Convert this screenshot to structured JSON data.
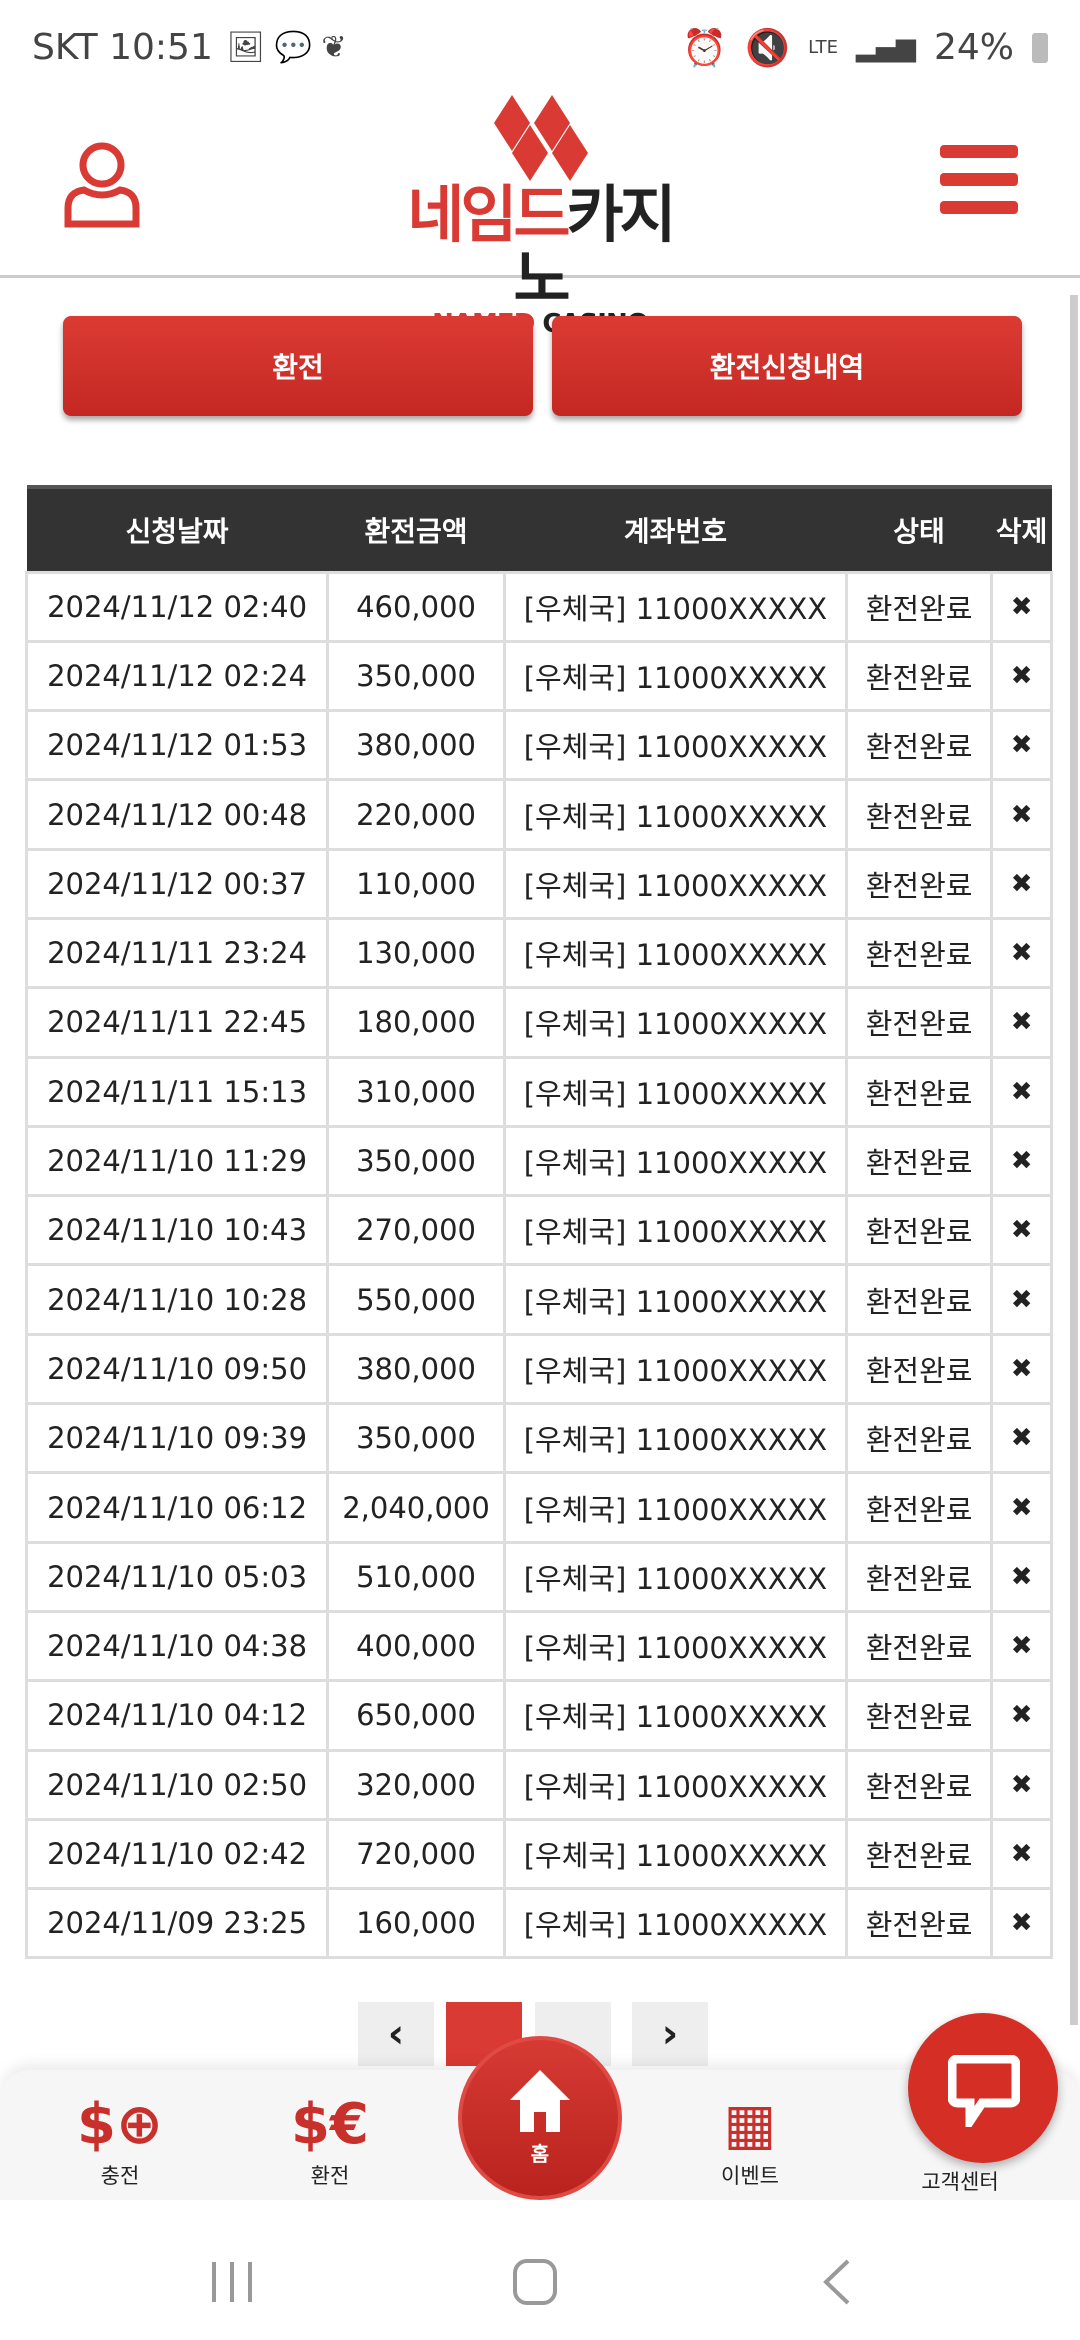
{
  "status_bar": {
    "carrier": "SKT",
    "time": "10:51",
    "network": "LTE",
    "battery": "24%"
  },
  "header": {
    "logo_kr_red": "네임드",
    "logo_kr_black": "카지노",
    "logo_en_red": "NAMED",
    "logo_en_black": "CASINO"
  },
  "buttons": {
    "withdraw": "환전",
    "history": "환전신청내역"
  },
  "table": {
    "headers": [
      "신청날짜",
      "환전금액",
      "계좌번호",
      "상태",
      "삭제"
    ],
    "rows": [
      [
        "2024/11/12 02:40",
        "460,000",
        "[우체국] 11000XXXXX",
        "환전완료"
      ],
      [
        "2024/11/12 02:24",
        "350,000",
        "[우체국] 11000XXXXX",
        "환전완료"
      ],
      [
        "2024/11/12 01:53",
        "380,000",
        "[우체국] 11000XXXXX",
        "환전완료"
      ],
      [
        "2024/11/12 00:48",
        "220,000",
        "[우체국] 11000XXXXX",
        "환전완료"
      ],
      [
        "2024/11/12 00:37",
        "110,000",
        "[우체국] 11000XXXXX",
        "환전완료"
      ],
      [
        "2024/11/11 23:24",
        "130,000",
        "[우체국] 11000XXXXX",
        "환전완료"
      ],
      [
        "2024/11/11 22:45",
        "180,000",
        "[우체국] 11000XXXXX",
        "환전완료"
      ],
      [
        "2024/11/11 15:13",
        "310,000",
        "[우체국] 11000XXXXX",
        "환전완료"
      ],
      [
        "2024/11/10 11:29",
        "350,000",
        "[우체국] 11000XXXXX",
        "환전완료"
      ],
      [
        "2024/11/10 10:43",
        "270,000",
        "[우체국] 11000XXXXX",
        "환전완료"
      ],
      [
        "2024/11/10 10:28",
        "550,000",
        "[우체국] 11000XXXXX",
        "환전완료"
      ],
      [
        "2024/11/10 09:50",
        "380,000",
        "[우체국] 11000XXXXX",
        "환전완료"
      ],
      [
        "2024/11/10 09:39",
        "350,000",
        "[우체국] 11000XXXXX",
        "환전완료"
      ],
      [
        "2024/11/10 06:12",
        "2,040,000",
        "[우체국] 11000XXXXX",
        "환전완료"
      ],
      [
        "2024/11/10 05:03",
        "510,000",
        "[우체국] 11000XXXXX",
        "환전완료"
      ],
      [
        "2024/11/10 04:38",
        "400,000",
        "[우체국] 11000XXXXX",
        "환전완료"
      ],
      [
        "2024/11/10 04:12",
        "650,000",
        "[우체국] 11000XXXXX",
        "환전완료"
      ],
      [
        "2024/11/10 02:50",
        "320,000",
        "[우체국] 11000XXXXX",
        "환전완료"
      ],
      [
        "2024/11/10 02:42",
        "720,000",
        "[우체국] 11000XXXXX",
        "환전완료"
      ],
      [
        "2024/11/09 23:25",
        "160,000",
        "[우체국] 11000XXXXX",
        "환전완료"
      ]
    ],
    "delete_icon": "✖"
  },
  "pagination": {
    "prev": "‹",
    "next": "›",
    "current_page": 1
  },
  "bottom_nav": {
    "charge": "충전",
    "withdraw": "환전",
    "home": "홈",
    "event": "이벤트",
    "support": "고객센터"
  },
  "colors": {
    "accent": "#d93a33",
    "header_bg": "#333333"
  }
}
